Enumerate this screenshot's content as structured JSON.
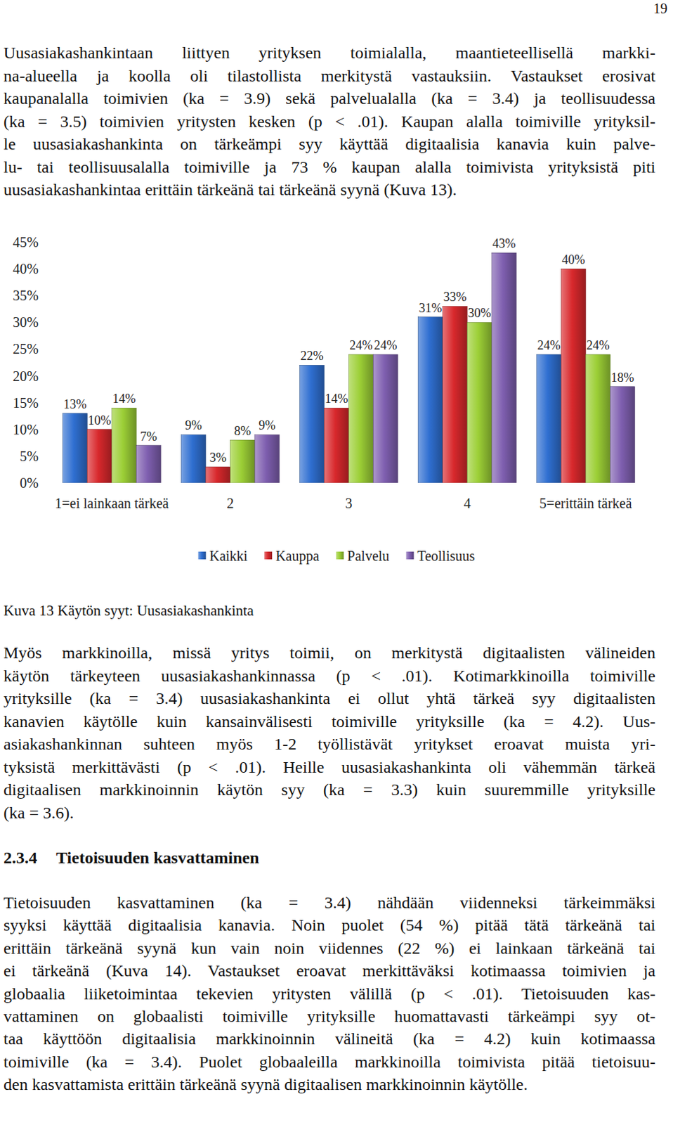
{
  "page_number": "19",
  "paragraph_1": {
    "lines": [
      "Uusasiakashankintaan liittyen yrityksen toimialalla, maantieteellisellä markki-",
      "na-alueella ja koolla oli tilastollista merkitystä vastauksiin. Vastaukset erosivat",
      "kaupanalalla toimivien (ka = 3.9) sekä palvelualalla (ka = 3.4) ja teollisuudessa",
      "(ka = 3.5) toimivien yritysten kesken (p < .01). Kaupan alalla toimiville yrityksil-",
      "le uusasiakashankinta on tärkeämpi syy käyttää digitaalisia kanavia kuin palve-",
      "lu- tai teollisuusalalla toimiville ja 73 % kaupan alalla toimivista yrityksistä piti",
      "uusasiakashankintaa erittäin tärkeänä tai tärkeänä syynä (Kuva 13)."
    ]
  },
  "chart_data": {
    "type": "bar",
    "categories": [
      "1=ei lainkaan tärkeä",
      "2",
      "3",
      "4",
      "5=erittäin tärkeä"
    ],
    "series": [
      {
        "name": "Kaikki",
        "color": "#2f6fd1",
        "values": [
          13,
          9,
          22,
          31,
          24
        ],
        "value_labels": [
          "13%",
          "9%",
          "22%",
          "31%",
          "24%"
        ]
      },
      {
        "name": "Kauppa",
        "color": "#d8282c",
        "values": [
          10,
          3,
          14,
          33,
          40
        ],
        "value_labels": [
          "10%",
          "3%",
          "14%",
          "33%",
          "40%"
        ]
      },
      {
        "name": "Palvelu",
        "color": "#9ccf36",
        "values": [
          14,
          8,
          24,
          30,
          24
        ],
        "value_labels": [
          "14%",
          "8%",
          "24%",
          "30%",
          "24%"
        ]
      },
      {
        "name": "Teollisuus",
        "color": "#7f5fb0",
        "values": [
          7,
          9,
          24,
          43,
          18
        ],
        "value_labels": [
          "7%",
          "9%",
          "24%",
          "43%",
          "18%"
        ]
      }
    ],
    "ylim": [
      0,
      45
    ],
    "yticks": [
      {
        "value": 0,
        "label": "0%"
      },
      {
        "value": 5,
        "label": "5%"
      },
      {
        "value": 10,
        "label": "10%"
      },
      {
        "value": 15,
        "label": "15%"
      },
      {
        "value": 20,
        "label": "20%"
      },
      {
        "value": 25,
        "label": "25%"
      },
      {
        "value": 30,
        "label": "30%"
      },
      {
        "value": 35,
        "label": "35%"
      },
      {
        "value": 40,
        "label": "40%"
      },
      {
        "value": 45,
        "label": "45%"
      }
    ],
    "grid": false,
    "data_labels": true,
    "legend": "bottom"
  },
  "caption": "Kuva 13 Käytön syyt: Uusasiakashankinta",
  "paragraph_2": {
    "lines": [
      "Myös markkinoilla, missä yritys toimii, on merkitystä digitaalisten välineiden",
      "käytön tärkeyteen uusasiakashankinnassa (p < .01). Kotimarkkinoilla toimiville",
      "yrityksille (ka = 3.4) uusasiakashankinta ei ollut yhtä tärkeä syy digitaalisten",
      "kanavien käytölle kuin kansainvälisesti toimiville yrityksille (ka = 4.2). Uus-",
      "asiakashankinnan suhteen myös 1-2 työllistävät yritykset eroavat muista yri-",
      "tyksistä merkittävästi (p < .01). Heille uusasiakashankinta oli vähemmän tärkeä",
      "digitaalisen markkinoinnin käytön syy (ka = 3.3) kuin suuremmille yrityksille",
      "(ka = 3.6)."
    ]
  },
  "heading": {
    "number": "2.3.4",
    "title": "Tietoisuuden kasvattaminen"
  },
  "paragraph_3": {
    "lines": [
      "Tietoisuuden kasvattaminen (ka = 3.4) nähdään viidenneksi tärkeimmäksi",
      "syyksi käyttää digitaalisia kanavia. Noin puolet (54 %) pitää tätä tärkeänä tai",
      "erittäin tärkeänä syynä kun vain noin viidennes (22 %) ei lainkaan tärkeänä tai",
      "ei tärkeänä (Kuva 14). Vastaukset eroavat merkittäväksi kotimaassa toimivien ja",
      "globaalia liiketoimintaa tekevien yritysten välillä (p < .01). Tietoisuuden kas-",
      "vattaminen on globaalisti toimiville yrityksille huomattavasti tärkeämpi syy ot-",
      "taa käyttöön digitaalisia markkinoinnin välineitä (ka = 4.2) kuin kotimaassa",
      "toimiville (ka = 3.4). Puolet globaaleilla markkinoilla toimivista pitää tietoisuu-",
      "den kasvattamista erittäin tärkeänä syynä digitaalisen markkinoinnin käytölle."
    ]
  }
}
